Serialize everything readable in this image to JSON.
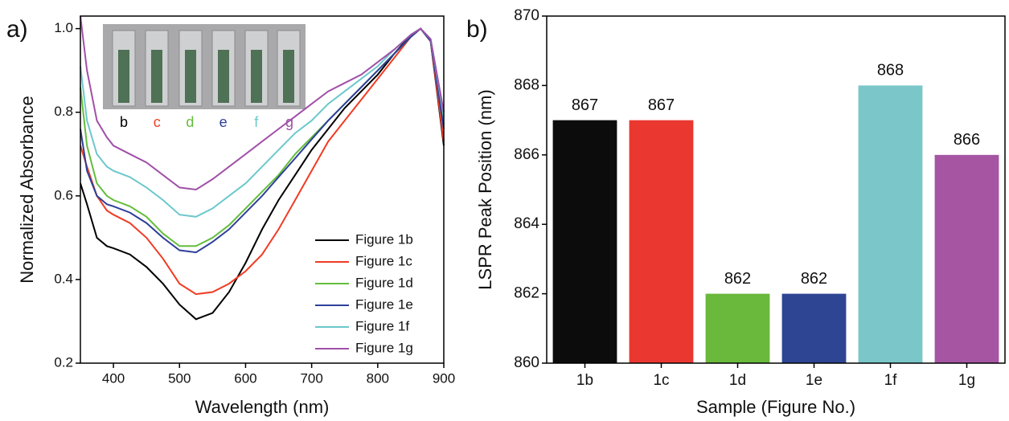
{
  "chart_data": [
    {
      "type": "line",
      "panel_label": "a)",
      "xlabel": "Wavelength (nm)",
      "ylabel": "Normalized Absorbance",
      "x": [
        350,
        360,
        375,
        390,
        400,
        425,
        450,
        475,
        500,
        525,
        550,
        575,
        600,
        625,
        650,
        675,
        700,
        725,
        750,
        775,
        800,
        825,
        850,
        865,
        880,
        900
      ],
      "series": [
        {
          "name": "Figure 1b",
          "color": "#000000",
          "values": [
            0.63,
            0.58,
            0.5,
            0.48,
            0.475,
            0.46,
            0.43,
            0.39,
            0.34,
            0.305,
            0.32,
            0.37,
            0.44,
            0.52,
            0.59,
            0.65,
            0.71,
            0.76,
            0.81,
            0.85,
            0.89,
            0.94,
            0.985,
            1.0,
            0.97,
            0.72
          ]
        },
        {
          "name": "Figure 1c",
          "color": "#f03c24",
          "values": [
            0.72,
            0.67,
            0.6,
            0.565,
            0.555,
            0.535,
            0.5,
            0.45,
            0.39,
            0.365,
            0.37,
            0.39,
            0.42,
            0.46,
            0.52,
            0.59,
            0.66,
            0.73,
            0.78,
            0.83,
            0.88,
            0.93,
            0.98,
            1.0,
            0.97,
            0.73
          ]
        },
        {
          "name": "Figure 1d",
          "color": "#63be3c",
          "values": [
            0.86,
            0.72,
            0.63,
            0.6,
            0.59,
            0.575,
            0.55,
            0.51,
            0.48,
            0.48,
            0.5,
            0.53,
            0.57,
            0.61,
            0.65,
            0.7,
            0.74,
            0.78,
            0.82,
            0.86,
            0.9,
            0.94,
            0.98,
            1.0,
            0.97,
            0.77
          ]
        },
        {
          "name": "Figure 1e",
          "color": "#2e3f9a",
          "values": [
            0.76,
            0.66,
            0.6,
            0.58,
            0.575,
            0.56,
            0.535,
            0.5,
            0.47,
            0.465,
            0.49,
            0.52,
            0.56,
            0.6,
            0.645,
            0.69,
            0.735,
            0.78,
            0.82,
            0.86,
            0.9,
            0.94,
            0.98,
            1.0,
            0.97,
            0.76
          ]
        },
        {
          "name": "Figure 1f",
          "color": "#6cc8cc",
          "values": [
            0.91,
            0.78,
            0.7,
            0.67,
            0.66,
            0.645,
            0.62,
            0.59,
            0.555,
            0.55,
            0.57,
            0.6,
            0.63,
            0.67,
            0.71,
            0.75,
            0.78,
            0.82,
            0.85,
            0.88,
            0.91,
            0.95,
            0.985,
            1.0,
            0.975,
            0.79
          ]
        },
        {
          "name": "Figure 1g",
          "color": "#a050a8",
          "values": [
            1.03,
            0.9,
            0.78,
            0.74,
            0.72,
            0.7,
            0.68,
            0.65,
            0.62,
            0.615,
            0.64,
            0.67,
            0.7,
            0.73,
            0.76,
            0.79,
            0.82,
            0.85,
            0.87,
            0.89,
            0.92,
            0.95,
            0.985,
            1.0,
            0.975,
            0.8
          ]
        }
      ],
      "xlim": [
        350,
        900
      ],
      "xticks": [
        400,
        500,
        600,
        700,
        800,
        900
      ],
      "ylim": [
        0.2,
        1.03
      ],
      "yticks": [
        0.2,
        0.4,
        0.6,
        0.8,
        {
          "value": 1,
          "label": "1.0"
        }
      ],
      "legend": "lower right",
      "inset": {
        "labels": [
          "b",
          "c",
          "d",
          "e",
          "f",
          "g"
        ],
        "colors": [
          "#000000",
          "#f03c24",
          "#63be3c",
          "#2e3f9a",
          "#6cc8cc",
          "#a050a8"
        ]
      }
    },
    {
      "type": "bar",
      "panel_label": "b)",
      "xlabel": "Sample (Figure No.)",
      "ylabel": "LSPR Peak Position (nm)",
      "categories": [
        "1b",
        "1c",
        "1d",
        "1e",
        "1f",
        "1g"
      ],
      "values": [
        867,
        867,
        862,
        862,
        868,
        866
      ],
      "colors": [
        "#0c0c0c",
        "#ea3830",
        "#6ab83c",
        "#2e4593",
        "#7ac6c8",
        "#a555a2"
      ],
      "ylim": [
        860,
        870
      ],
      "yticks": [
        860,
        862,
        864,
        866,
        868,
        870
      ]
    }
  ]
}
